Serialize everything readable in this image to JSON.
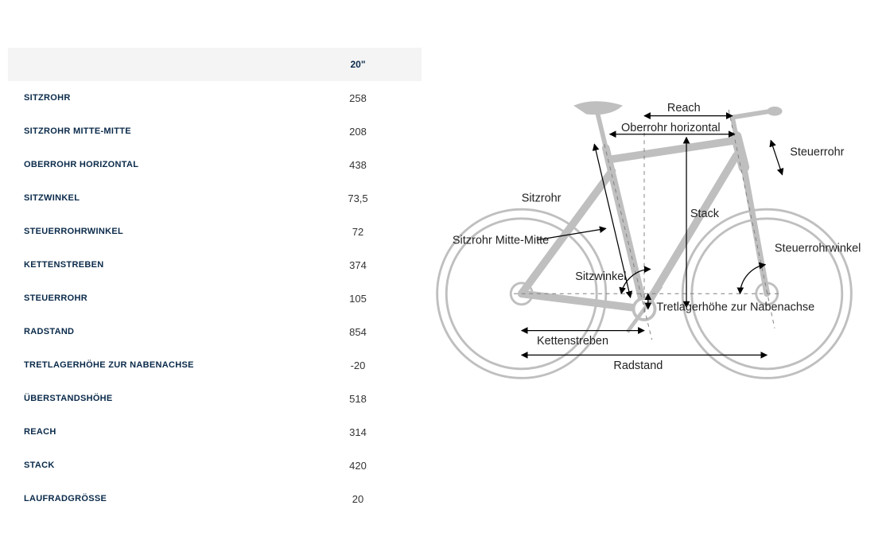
{
  "table": {
    "header_label": "",
    "header_value": "20\"",
    "rows": [
      {
        "label": "SITZROHR",
        "value": "258"
      },
      {
        "label": "SITZROHR MITTE-MITTE",
        "value": "208"
      },
      {
        "label": "OBERROHR HORIZONTAL",
        "value": "438"
      },
      {
        "label": "SITZWINKEL",
        "value": "73,5"
      },
      {
        "label": "STEUERROHRWINKEL",
        "value": "72"
      },
      {
        "label": "KETTENSTREBEN",
        "value": "374"
      },
      {
        "label": "STEUERROHR",
        "value": "105"
      },
      {
        "label": "RADSTAND",
        "value": "854"
      },
      {
        "label": "TRETLAGERHÖHE ZUR NABENACHSE",
        "value": "-20"
      },
      {
        "label": "ÜBERSTANDSHÖHE",
        "value": "518"
      },
      {
        "label": "REACH",
        "value": "314"
      },
      {
        "label": "STACK",
        "value": "420"
      },
      {
        "label": "LAUFRADGRÖSSE",
        "value": "20"
      }
    ]
  },
  "diagram": {
    "stroke_frame": "#bfbfbf",
    "stroke_arrow": "#000000",
    "stroke_dash": "#808080",
    "background": "#ffffff",
    "labels": {
      "reach": "Reach",
      "oberrohr": "Oberrohr horizontal",
      "steuerrohr": "Steuerrohr",
      "sitzrohr": "Sitzrohr",
      "stack": "Stack",
      "sitzrohr_mm": "Sitzrohr Mitte-Mitte",
      "steuerrohrwinkel": "Steuerrohrwinkel",
      "sitzwinkel": "Sitzwinkel",
      "tretlager": "Tretlagerhöhe zur Nabenachse",
      "kettenstreben": "Kettenstreben",
      "radstand": "Radstand"
    }
  }
}
